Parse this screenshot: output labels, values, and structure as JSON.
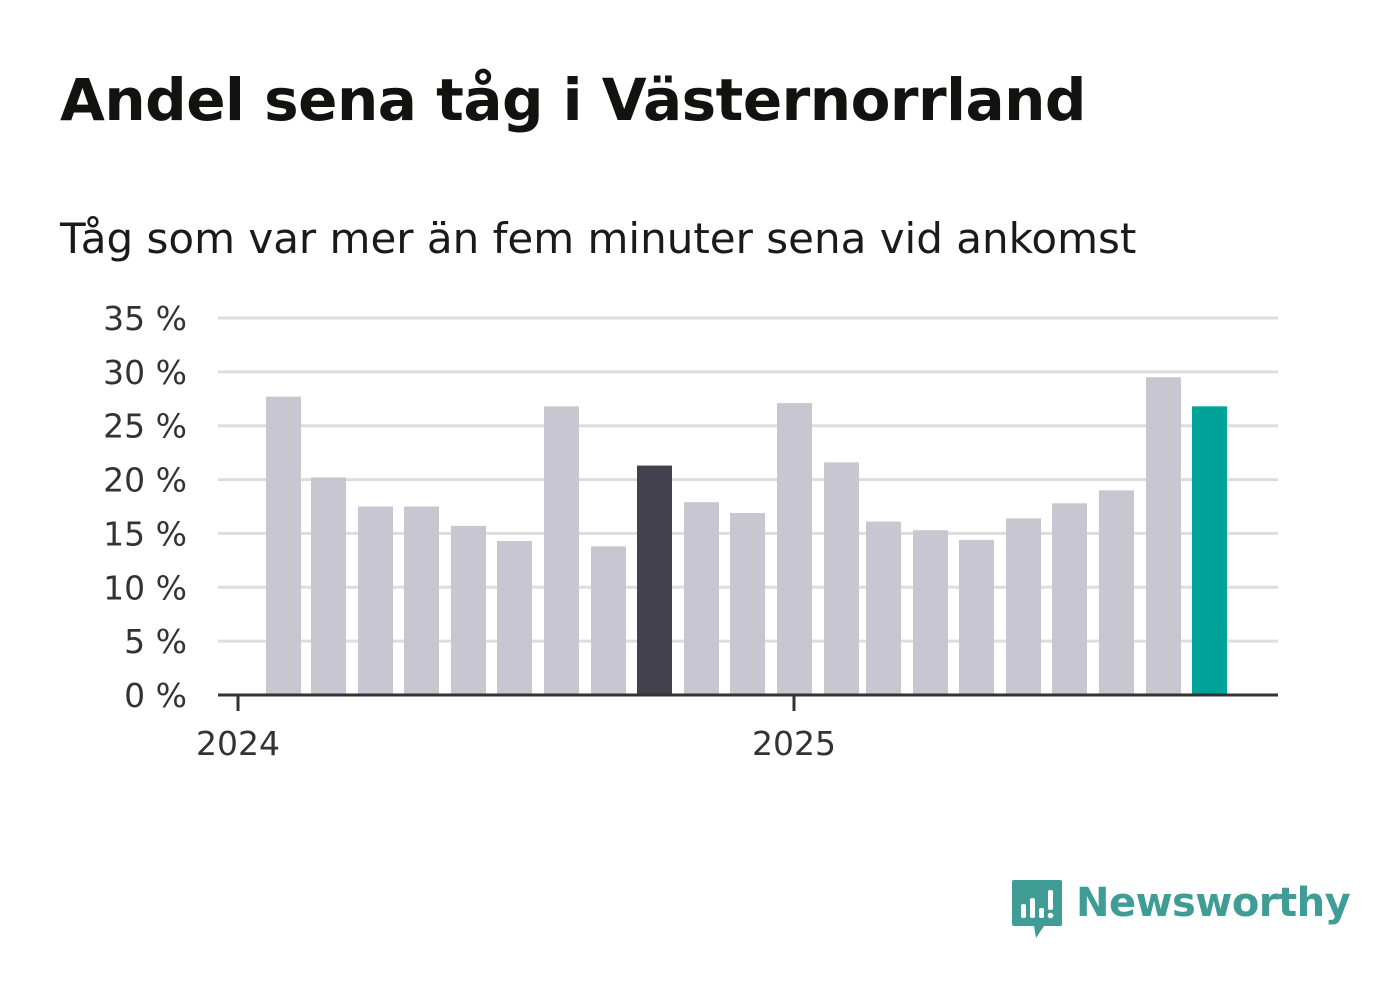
{
  "title": "Andel sena tåg i Västernorrland",
  "subtitle": "Tåg som var mer än fem minuter sena vid ankomst",
  "brand": {
    "name": "Newsworthy",
    "icon": "newsworthy-logo-icon",
    "color": "#3f9d96"
  },
  "colors": {
    "default_bar": "#c8c7d1",
    "highlight_bar": "#43414d",
    "latest_bar": "#00a39a",
    "gridline": "#dddddd",
    "axis": "#333333"
  },
  "chart_data": {
    "type": "bar",
    "title": "Andel sena tåg i Västernorrland",
    "subtitle": "Tåg som var mer än fem minuter sena vid ankomst",
    "xlabel": "",
    "ylabel": "",
    "unit": "%",
    "ylim": [
      0,
      35
    ],
    "yticks": [
      0,
      5,
      10,
      15,
      20,
      25,
      30,
      35
    ],
    "ytick_labels": [
      "0 %",
      "5 %",
      "10 %",
      "15 %",
      "20 %",
      "25 %",
      "30 %",
      "35 %"
    ],
    "xtick_labels": [
      "2024",
      "2025"
    ],
    "grid": true,
    "values": [
      27.7,
      20.2,
      17.5,
      17.5,
      15.7,
      14.3,
      26.8,
      13.8,
      21.3,
      17.9,
      16.9,
      27.1,
      21.6,
      16.1,
      15.3,
      14.4,
      16.4,
      17.8,
      19.0,
      29.5,
      26.8
    ],
    "bar_styles": [
      "default",
      "default",
      "default",
      "default",
      "default",
      "default",
      "default",
      "default",
      "highlight",
      "default",
      "default",
      "default",
      "default",
      "default",
      "default",
      "default",
      "default",
      "default",
      "default",
      "default",
      "latest"
    ]
  }
}
